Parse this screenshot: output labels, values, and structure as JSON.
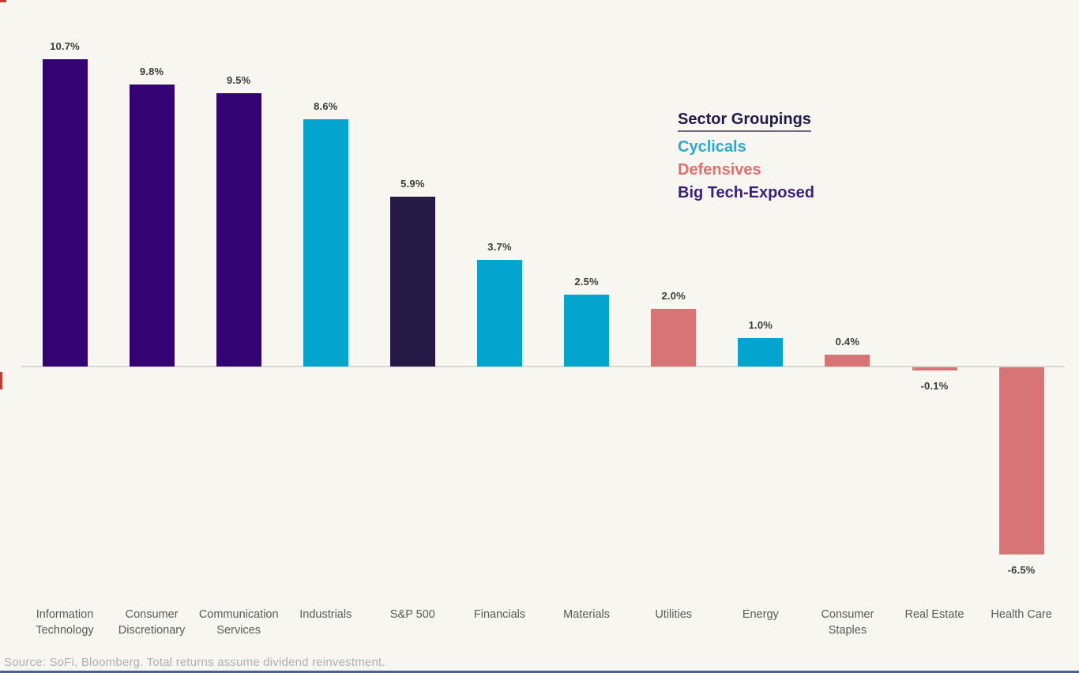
{
  "page": {
    "background": "#F8F6F1",
    "bottom_border_color": "#44609F",
    "artifact_color": "#C43B31"
  },
  "legend": {
    "title": "Sector Groupings",
    "title_color": "#211A4D",
    "items": [
      {
        "label": "Cyclicals",
        "color": "#2CA9D2",
        "group": "cyclical"
      },
      {
        "label": "Defensives",
        "color": "#E06F6E",
        "group": "defensive"
      },
      {
        "label": "Big Tech-Exposed",
        "color": "#3A1F7A",
        "group": "big-tech"
      }
    ]
  },
  "chart_data": {
    "type": "bar",
    "title": "",
    "xlabel": "",
    "ylabel": "",
    "unit": "%",
    "ylim": [
      -8,
      12
    ],
    "grid": false,
    "legend_position": "upper-right",
    "categories": [
      "Information Technology",
      "Consumer Discretionary",
      "Communication Services",
      "Industrials",
      "S&P 500",
      "Financials",
      "Materials",
      "Utilities",
      "Energy",
      "Consumer Staples",
      "Real Estate",
      "Health Care"
    ],
    "category_lines": [
      [
        "Information",
        "Technology"
      ],
      [
        "Consumer",
        "Discretionary"
      ],
      [
        "Communication",
        "Services"
      ],
      [
        "Industrials"
      ],
      [
        "S&P 500"
      ],
      [
        "Financials"
      ],
      [
        "Materials"
      ],
      [
        "Utilities"
      ],
      [
        "Energy"
      ],
      [
        "Consumer",
        "Staples"
      ],
      [
        "Real Estate"
      ],
      [
        "Health Care"
      ]
    ],
    "values": [
      10.7,
      9.8,
      9.5,
      8.6,
      5.9,
      3.7,
      2.5,
      2.0,
      1.0,
      0.4,
      -0.1,
      -6.5
    ],
    "value_labels": [
      "10.7%",
      "9.8%",
      "9.5%",
      "8.6%",
      "5.9%",
      "3.7%",
      "2.5%",
      "2.0%",
      "1.0%",
      "0.4%",
      "-0.1%",
      "-6.5%"
    ],
    "groups": [
      "big-tech",
      "big-tech",
      "big-tech",
      "cyclical",
      "index",
      "cyclical",
      "cyclical",
      "defensive",
      "cyclical",
      "defensive",
      "defensive",
      "defensive"
    ],
    "group_colors": {
      "big-tech": "#330374",
      "cyclical": "#03A5CE",
      "defensive": "#D97476",
      "index": "#241A45"
    }
  },
  "source_note": "Source: SoFi, Bloomberg. Total returns assume dividend reinvestment."
}
